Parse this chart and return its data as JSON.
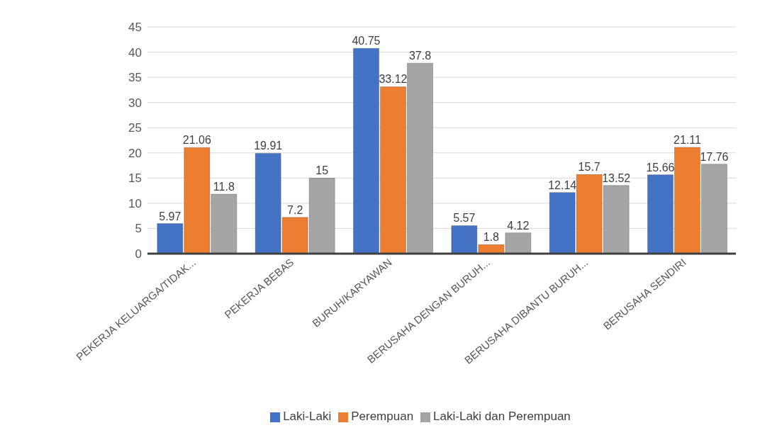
{
  "chart_data": {
    "type": "bar",
    "categories": [
      "PEKERJA KELUARGA/TIDAK...",
      "PEKERJA BEBAS",
      "BURUH/KARYAWAN",
      "BERUSAHA DENGAN BURUH...",
      "BERUSAHA DIBANTU BURUH...",
      "BERUSAHA SENDIRI"
    ],
    "series": [
      {
        "name": "Laki-Laki",
        "color": "#4472c4",
        "values": [
          5.97,
          19.91,
          40.75,
          5.57,
          12.14,
          15.66
        ]
      },
      {
        "name": "Perempuan",
        "color": "#ed7d31",
        "values": [
          21.06,
          7.2,
          33.12,
          1.8,
          15.7,
          21.11
        ]
      },
      {
        "name": "Laki-Laki dan Perempuan",
        "color": "#a5a5a5",
        "values": [
          11.8,
          15,
          37.8,
          4.12,
          13.52,
          17.76
        ]
      }
    ],
    "ylim": [
      0,
      45
    ],
    "yticks": [
      0,
      5,
      10,
      15,
      20,
      25,
      30,
      35,
      40,
      45
    ],
    "grid": "y",
    "legend": "bottom",
    "data_labels": true
  }
}
